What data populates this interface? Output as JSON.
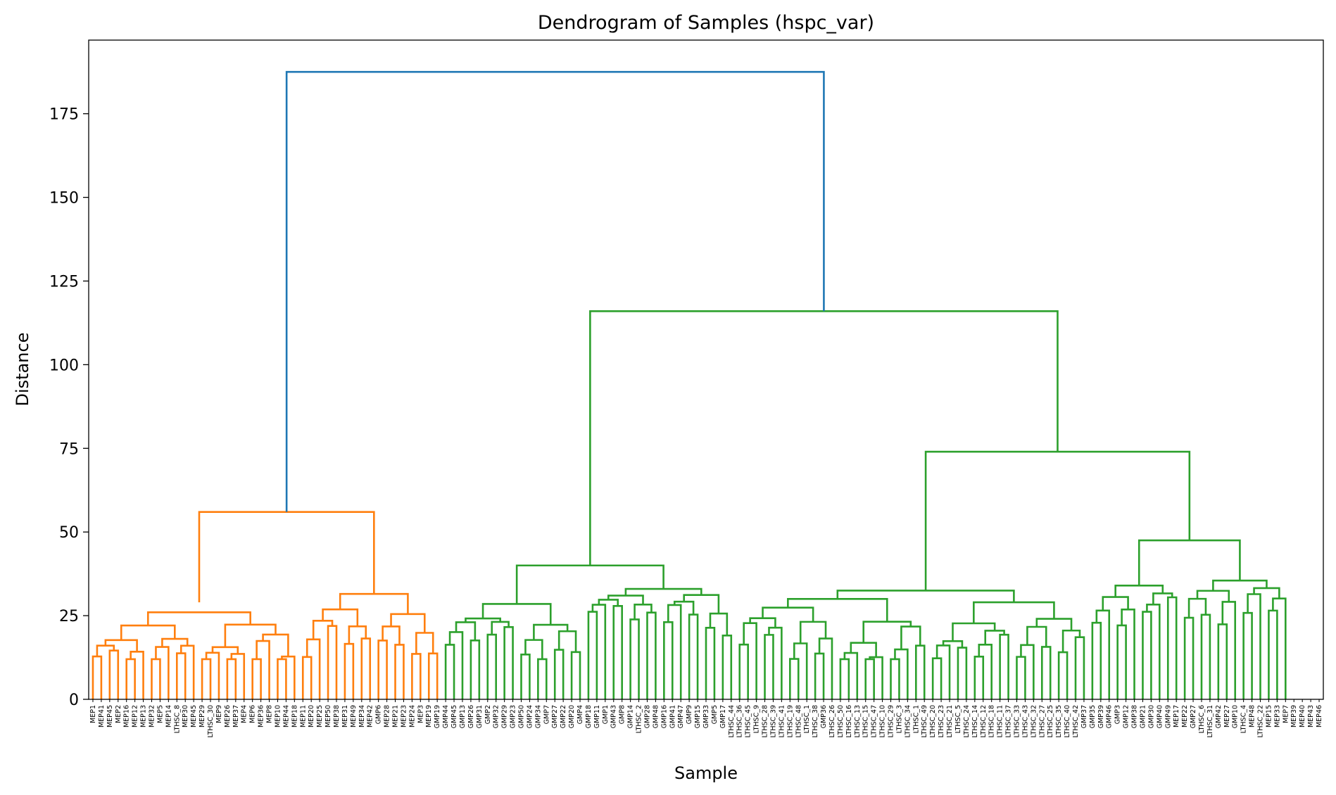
{
  "chart_data": {
    "type": "dendrogram",
    "title": "Dendrogram of Samples (hspc_var)",
    "xlabel": "Sample",
    "ylabel": "Distance",
    "ylim": [
      0,
      197
    ],
    "yticks": [
      0,
      25,
      50,
      75,
      100,
      125,
      150,
      175
    ],
    "grid": false,
    "colors": {
      "above_threshold": "#1f77b4",
      "cluster_1": "#ff7f0e",
      "cluster_2": "#2ca02c"
    },
    "leaves": [
      "MEP1",
      "MEP41",
      "MEP45",
      "MEP2",
      "MEP16",
      "MEP12",
      "MEP13",
      "MEP32",
      "MEP5",
      "MEP14",
      "LTHSC_8",
      "MEP30",
      "MEP45",
      "MEP29",
      "LTHSC_30",
      "MEP9",
      "MEP26",
      "MEP37",
      "MEP4",
      "MEP6",
      "MEP36",
      "MEP8",
      "MEP10",
      "MEP44",
      "MEP18",
      "MEP11",
      "MEP20",
      "MEP25",
      "MEP50",
      "MEP38",
      "MEP31",
      "MEP49",
      "MEP34",
      "MEP42",
      "GMP6",
      "MEP28",
      "MEP21",
      "MEP23",
      "MEP24",
      "MEP3",
      "MEP19",
      "GMP19",
      "GMP44",
      "GMP45",
      "GMP13",
      "GMP26",
      "GMP31",
      "GMP2",
      "GMP32",
      "GMP29",
      "GMP23",
      "GMP50",
      "GMP24",
      "GMP34",
      "GMP7",
      "GMP27",
      "GMP22",
      "GMP20",
      "GMP4",
      "GMP18",
      "GMP11",
      "GMP1",
      "GMP43",
      "GMP8",
      "GMP14",
      "LTHSC_2",
      "GMP28",
      "GMP48",
      "GMP16",
      "GMP41",
      "GMP47",
      "GMP9",
      "GMP15",
      "GMP33",
      "GMP5",
      "GMP17",
      "LTHSC_44",
      "LTHSC_36",
      "LTHSC_45",
      "LTHSC_9",
      "LTHSC_28",
      "LTHSC_39",
      "LTHSC_41",
      "LTHSC_19",
      "LTHSC_48",
      "LTHSC_1",
      "LTHSC_38",
      "GMP36",
      "LTHSC_26",
      "LTHSC_50",
      "LTHSC_16",
      "LTHSC_13",
      "LTHSC_15",
      "LTHSC_47",
      "LTHSC_10",
      "LTHSC_29",
      "LTHSC_3",
      "LTHSC_34",
      "LTHSC_1",
      "LTHSC_49",
      "LTHSC_20",
      "LTHSC_23",
      "LTHSC_21",
      "LTHSC_5",
      "LTHSC_24",
      "LTHSC_14",
      "LTHSC_12",
      "LTHSC_18",
      "LTHSC_11",
      "LTHSC_37",
      "LTHSC_33",
      "LTHSC_43",
      "LTHSC_32",
      "LTHSC_27",
      "LTHSC_25",
      "LTHSC_35",
      "LTHSC_40",
      "LTHSC_42",
      "GMP37",
      "GMP35",
      "GMP39",
      "GMP46",
      "GMP3",
      "GMP12",
      "GMP38",
      "GMP21",
      "GMP30",
      "GMP40",
      "GMP49",
      "MEP17",
      "MEP22",
      "GMP27",
      "LTHSC_6",
      "LTHSC_31",
      "GMP42",
      "MEP27",
      "GMP10",
      "LTHSC_4",
      "MEP48",
      "LTHSC_22",
      "MEP15",
      "MEP33",
      "MEP7",
      "MEP39",
      "MEP40",
      "MEP43",
      "MEP46"
    ],
    "clusters": [
      {
        "color_key": "cluster_1",
        "first_leaf": 0,
        "last_leaf": 41,
        "merge_distance": 56
      },
      {
        "color_key": "cluster_2",
        "first_leaf": 42,
        "last_leaf": 142,
        "merge_distance": 116
      }
    ],
    "merges": [
      {
        "label": "root",
        "distance": 187.5,
        "children": [
          "cluster_1",
          "cluster_2"
        ]
      },
      {
        "label": "cluster_2",
        "distance": 116,
        "children": [
          "gmp_group",
          "right_group"
        ]
      },
      {
        "label": "right_group",
        "distance": 74,
        "children": [
          "lthsc_group",
          "mixed_group"
        ]
      },
      {
        "label": "mixed_group",
        "distance": 47.5
      },
      {
        "label": "gmp_group",
        "distance": 40
      },
      {
        "label": "cluster_1",
        "distance": 56
      }
    ]
  }
}
